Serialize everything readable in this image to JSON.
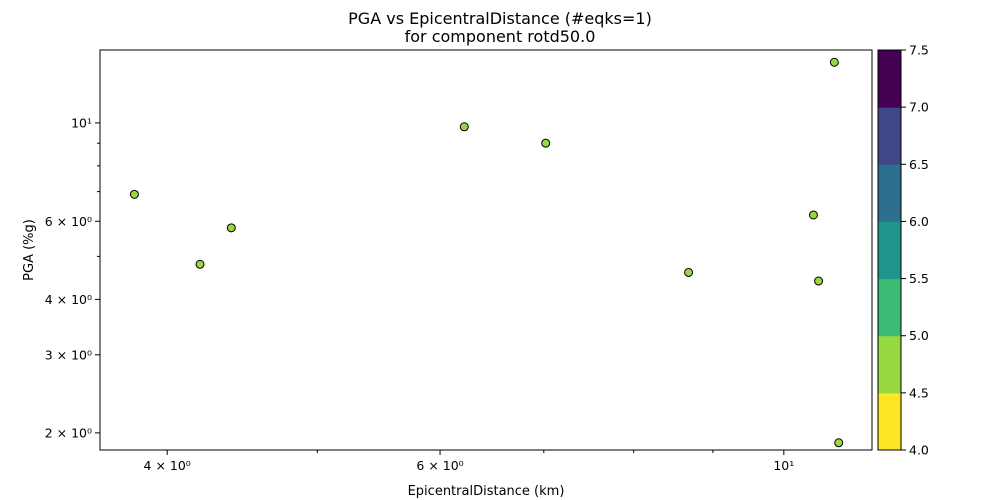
{
  "chart_data": {
    "type": "scatter",
    "title": "PGA vs EpicentralDistance (#eqks=1)",
    "subtitle": "for component rotd50.0",
    "xlabel": "EpicentralDistance (km)",
    "ylabel": "PGA (%g)",
    "xscale": "log",
    "yscale": "log",
    "xlim": [
      3.62,
      11.4
    ],
    "ylim": [
      1.83,
      14.6
    ],
    "x_ticks": [
      {
        "value": 4,
        "label": "4 × 10⁰"
      },
      {
        "value": 6,
        "label": "6 × 10⁰"
      },
      {
        "value": 10,
        "label": "10¹"
      }
    ],
    "x_minor_ticks": [
      5,
      7,
      8,
      9
    ],
    "y_ticks": [
      {
        "value": 2,
        "label": "2 × 10⁰"
      },
      {
        "value": 3,
        "label": "3 × 10⁰"
      },
      {
        "value": 4,
        "label": "4 × 10⁰"
      },
      {
        "value": 6,
        "label": "6 × 10⁰"
      },
      {
        "value": 10,
        "label": "10¹"
      }
    ],
    "y_minor_ticks": [
      5,
      7,
      8,
      9
    ],
    "grid": false,
    "points": [
      {
        "x": 3.81,
        "y": 6.9,
        "magnitude": 4.8
      },
      {
        "x": 4.2,
        "y": 4.8,
        "magnitude": 4.8
      },
      {
        "x": 4.4,
        "y": 5.8,
        "magnitude": 4.8
      },
      {
        "x": 6.22,
        "y": 9.8,
        "magnitude": 4.8
      },
      {
        "x": 7.02,
        "y": 9.0,
        "magnitude": 4.8
      },
      {
        "x": 8.68,
        "y": 4.6,
        "magnitude": 4.8
      },
      {
        "x": 10.45,
        "y": 6.2,
        "magnitude": 4.8
      },
      {
        "x": 10.53,
        "y": 4.4,
        "magnitude": 4.8
      },
      {
        "x": 10.78,
        "y": 13.7,
        "magnitude": 4.8
      },
      {
        "x": 10.85,
        "y": 1.9,
        "magnitude": 4.8
      }
    ],
    "colorbar": {
      "min": 4.0,
      "max": 7.5,
      "tick_labels": [
        "4.0",
        "4.5",
        "5.0",
        "5.5",
        "6.0",
        "6.5",
        "7.0",
        "7.5"
      ],
      "bands": [
        "#fde725",
        "#95d840",
        "#3cbb75",
        "#1f968b",
        "#2d708e",
        "#404788",
        "#440154"
      ]
    },
    "marker_color": "#95d840"
  }
}
